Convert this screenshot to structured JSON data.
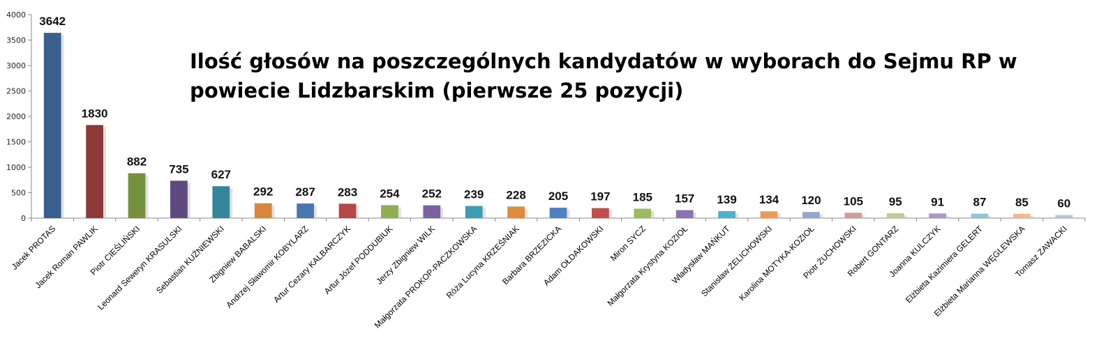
{
  "chart_data": {
    "type": "bar",
    "title_lines": [
      "Ilość głosów na poszczególnych kandydatów w wyborach do Sejmu RP w",
      "powiecie Lidzbarskim (pierwsze 25 pozycji)"
    ],
    "xlabel": "",
    "ylabel": "",
    "ylim": [
      0,
      4000
    ],
    "yticks": [
      0,
      500,
      1000,
      1500,
      2000,
      2500,
      3000,
      3500,
      4000
    ],
    "grid": false,
    "legend": "none",
    "categories": [
      "Jacek PROTAS",
      "Jacek Roman PAWLIK",
      "Piotr CIEŚLIŃSKI",
      "Leonard Seweryn KRASULSKI",
      "Sebastian KUŹNIEWSKI",
      "Zbigniew BABALSKI",
      "Andrzej Sławomir KOBYLARZ",
      "Artur Cezary KALBARCZYK",
      "Artur Józef PODDUBIUK",
      "Jerzy Zbigniew WILK",
      "Małgorzata PROKOP-PACZKOWSKA",
      "Róża Lucyna KRZEŚNIAK",
      "Barbara BRZEZICKA",
      "Adam OŁDAKOWSKI",
      "Miron SYCZ",
      "Małgorzata Krystyna KOZIOŁ",
      "Władysław MAŃKUT",
      "Stanisław ŻELICHOWSKI",
      "Karolina MOTYKA-KOZIOŁ",
      "Piotr ŻUCHOWSKI",
      "Robert GONTARZ",
      "Joanna KULCZYK",
      "Elżbieta Kazimiera GELERT",
      "Elżbieta Marianna WĘGLEWSKA",
      "Tomasz ZAWACKI"
    ],
    "values": [
      3642,
      1830,
      882,
      735,
      627,
      292,
      287,
      283,
      254,
      252,
      239,
      228,
      205,
      197,
      185,
      157,
      139,
      134,
      120,
      105,
      95,
      91,
      87,
      85,
      60
    ],
    "colors": [
      "#3a5f8f",
      "#8e3a38",
      "#76913e",
      "#5f4a80",
      "#36869a",
      "#d9853a",
      "#4a76b0",
      "#b54747",
      "#8fae52",
      "#7a62a0",
      "#3d9eb3",
      "#e08a3c",
      "#4f80c2",
      "#c24e4e",
      "#9dbb5e",
      "#8873b0",
      "#4fb1c9",
      "#ee9a50",
      "#93a8cf",
      "#d39a9a",
      "#bccf95",
      "#a898c6",
      "#8fc6d6",
      "#f5b98a",
      "#b4c4de"
    ]
  }
}
